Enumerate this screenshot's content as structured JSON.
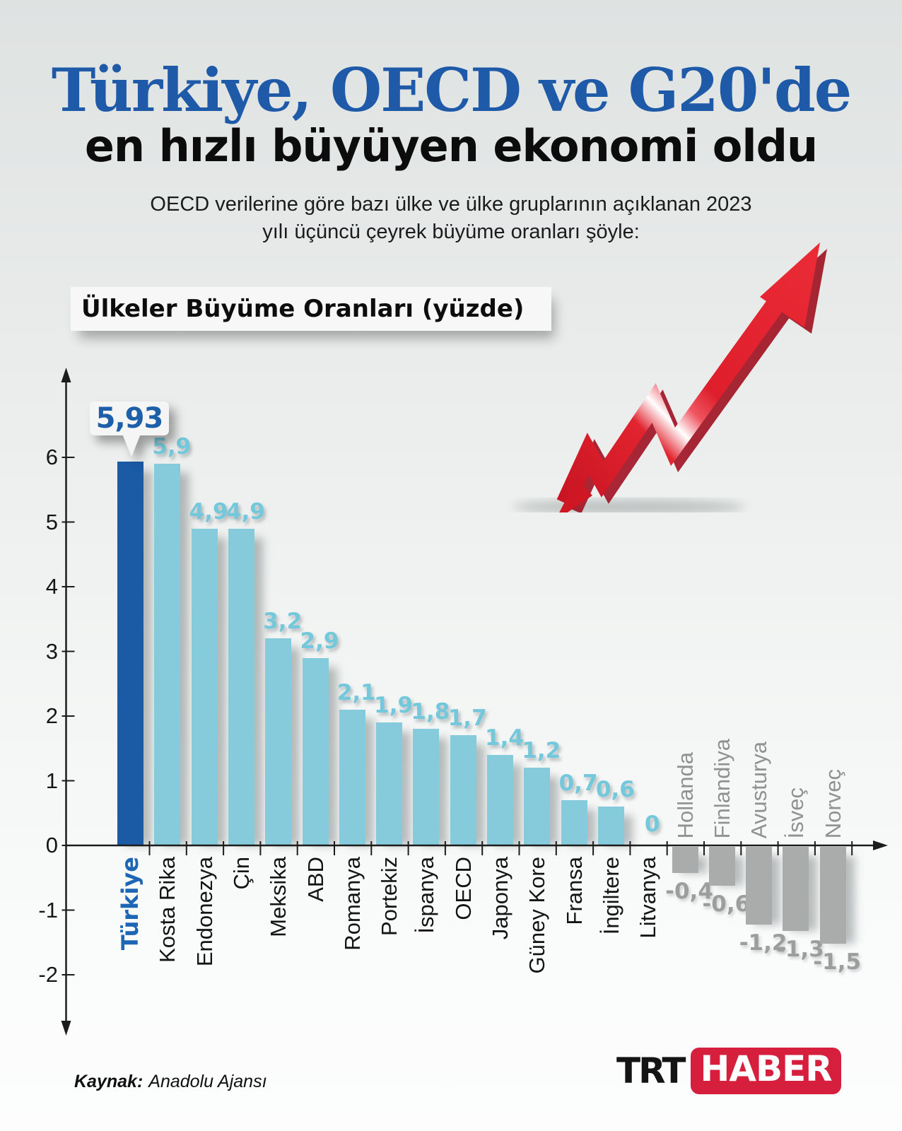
{
  "header": {
    "title_line1": "Türkiye, OECD ve G20'de",
    "title_line2": "en hızlı büyüyen ekonomi oldu",
    "description_line1": "OECD verilerine göre bazı ülke ve ülke gruplarının açıklanan 2023",
    "description_line2": "yılı üçüncü çeyrek büyüme oranları şöyle:",
    "chart_label": "Ülkeler Büyüme Oranları (yüzde)"
  },
  "chart_data": {
    "type": "bar",
    "title": "Ülkeler Büyüme Oranları (yüzde)",
    "categories": [
      "Türkiye",
      "Kosta Rika",
      "Endonezya",
      "Çin",
      "Meksika",
      "ABD",
      "Romanya",
      "Portekiz",
      "İspanya",
      "OECD",
      "Japonya",
      "Güney Kore",
      "Fransa",
      "İngiltere",
      "Litvanya",
      "Hollanda",
      "Finlandiya",
      "Avusturya",
      "İsveç",
      "Norveç"
    ],
    "values": [
      5.93,
      5.9,
      4.9,
      4.9,
      3.2,
      2.9,
      2.1,
      1.9,
      1.8,
      1.7,
      1.4,
      1.2,
      0.7,
      0.6,
      0,
      -0.4,
      -0.6,
      -1.2,
      -1.3,
      -1.5
    ],
    "value_labels": [
      "5,93",
      "5,9",
      "4,9",
      "4,9",
      "3,2",
      "2,9",
      "2,1",
      "1,9",
      "1,8",
      "1,7",
      "1,4",
      "1,2",
      "0,7",
      "0,6",
      "0",
      "-0,4",
      "-0,6",
      "-1,2",
      "-1,3",
      "-1,5"
    ],
    "highlight_category": "Türkiye",
    "highlight_value_label": "5,93",
    "y_ticks": [
      6,
      5,
      4,
      3,
      2,
      1,
      0,
      -1,
      -2
    ],
    "ylim": [
      -2.6,
      6.6
    ],
    "grid": false,
    "legend": false,
    "colors": {
      "highlight_bar": "#1b5aa5",
      "positive_bar": "#85cbdc",
      "negative_bar": "#a9acab",
      "value_label_positive": "#74c8db",
      "value_label_negative": "#9b9e9d",
      "highlight_label": "#1d5fa8",
      "axis": "#1c1c1c"
    }
  },
  "decor": {
    "trend_arrow": "red-3d-up-arrow",
    "arrow_red": "#e02330"
  },
  "footer": {
    "source_label": "Kaynak:",
    "source_value": "Anadolu Ajansı",
    "logo_text": "TRT",
    "logo_badge": "HABER"
  }
}
